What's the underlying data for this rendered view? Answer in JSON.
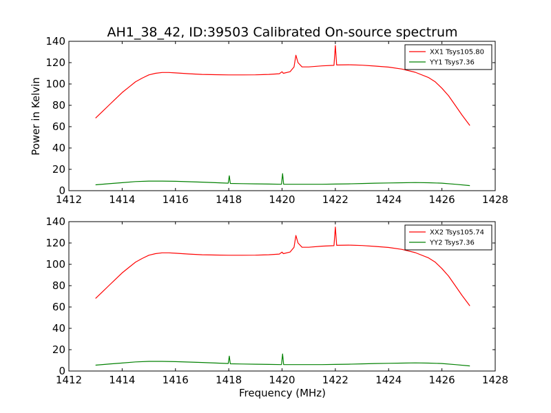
{
  "figure": {
    "title": "AH1_38_42, ID:39503 Calibrated On-source spectrum",
    "ylabel": "Power in Kelvin",
    "xlabel": "Frequency (MHz)"
  },
  "chart_data": [
    {
      "type": "line",
      "xlim": [
        1412,
        1428
      ],
      "ylim": [
        0,
        140
      ],
      "xticks": [
        "1412",
        "1414",
        "1416",
        "1418",
        "1420",
        "1422",
        "1424",
        "1426",
        "1428"
      ],
      "yticks": [
        "0",
        "20",
        "40",
        "60",
        "80",
        "100",
        "120",
        "140"
      ],
      "legend_position": "top-right",
      "series": [
        {
          "name": "XX1 Tsys105.80",
          "color": "#ff0000",
          "points": [
            [
              1413.0,
              68
            ],
            [
              1413.25,
              74
            ],
            [
              1413.5,
              80
            ],
            [
              1413.75,
              86
            ],
            [
              1414.0,
              92
            ],
            [
              1414.25,
              97
            ],
            [
              1414.5,
              102
            ],
            [
              1414.75,
              105.5
            ],
            [
              1415.0,
              108.5
            ],
            [
              1415.25,
              110
            ],
            [
              1415.5,
              110.8
            ],
            [
              1415.75,
              110.8
            ],
            [
              1416.0,
              110.4
            ],
            [
              1416.5,
              109.6
            ],
            [
              1417.0,
              109
            ],
            [
              1417.5,
              108.7
            ],
            [
              1418.0,
              108.5
            ],
            [
              1418.5,
              108.5
            ],
            [
              1419.0,
              108.6
            ],
            [
              1419.5,
              109
            ],
            [
              1419.9,
              109.6
            ],
            [
              1420.0,
              111.5
            ],
            [
              1420.05,
              110
            ],
            [
              1420.3,
              111.5
            ],
            [
              1420.45,
              116
            ],
            [
              1420.52,
              127
            ],
            [
              1420.6,
              120
            ],
            [
              1420.75,
              116
            ],
            [
              1421.0,
              116
            ],
            [
              1421.5,
              117
            ],
            [
              1421.95,
              117.5
            ],
            [
              1422.0,
              136
            ],
            [
              1422.05,
              117.8
            ],
            [
              1422.5,
              118
            ],
            [
              1423.0,
              117.6
            ],
            [
              1423.5,
              116.8
            ],
            [
              1424.0,
              115.8
            ],
            [
              1424.5,
              114
            ],
            [
              1425.0,
              111
            ],
            [
              1425.5,
              106
            ],
            [
              1425.75,
              102
            ],
            [
              1426.0,
              96
            ],
            [
              1426.25,
              89
            ],
            [
              1426.5,
              80
            ],
            [
              1426.75,
              71
            ],
            [
              1427.05,
              61
            ]
          ]
        },
        {
          "name": "YY1 Tsys7.36",
          "color": "#008000",
          "points": [
            [
              1413.0,
              5.5
            ],
            [
              1413.5,
              6.5
            ],
            [
              1414.0,
              7.5
            ],
            [
              1414.5,
              8.5
            ],
            [
              1415.0,
              9
            ],
            [
              1415.5,
              9
            ],
            [
              1416.0,
              8.8
            ],
            [
              1416.5,
              8.4
            ],
            [
              1417.0,
              8
            ],
            [
              1417.5,
              7.5
            ],
            [
              1417.98,
              7
            ],
            [
              1418.02,
              14
            ],
            [
              1418.06,
              6.8
            ],
            [
              1418.5,
              6.6
            ],
            [
              1419.0,
              6.4
            ],
            [
              1419.5,
              6.2
            ],
            [
              1419.98,
              6
            ],
            [
              1420.02,
              16
            ],
            [
              1420.06,
              6
            ],
            [
              1420.5,
              6
            ],
            [
              1421.0,
              6
            ],
            [
              1421.5,
              6
            ],
            [
              1422.0,
              6.2
            ],
            [
              1422.5,
              6.4
            ],
            [
              1423.0,
              6.7
            ],
            [
              1423.5,
              7
            ],
            [
              1424.0,
              7.2
            ],
            [
              1424.5,
              7.4
            ],
            [
              1425.0,
              7.6
            ],
            [
              1425.5,
              7.4
            ],
            [
              1426.0,
              7
            ],
            [
              1426.5,
              6
            ],
            [
              1427.05,
              4.8
            ]
          ]
        }
      ]
    },
    {
      "type": "line",
      "xlim": [
        1412,
        1428
      ],
      "ylim": [
        0,
        140
      ],
      "xticks": [
        "1412",
        "1414",
        "1416",
        "1418",
        "1420",
        "1422",
        "1424",
        "1426",
        "1428"
      ],
      "yticks": [
        "0",
        "20",
        "40",
        "60",
        "80",
        "100",
        "120",
        "140"
      ],
      "legend_position": "top-right",
      "series": [
        {
          "name": "XX2 Tsys105.74",
          "color": "#ff0000",
          "points": [
            [
              1413.0,
              68
            ],
            [
              1413.25,
              74
            ],
            [
              1413.5,
              80
            ],
            [
              1413.75,
              86
            ],
            [
              1414.0,
              92
            ],
            [
              1414.25,
              97
            ],
            [
              1414.5,
              102
            ],
            [
              1414.75,
              105.5
            ],
            [
              1415.0,
              108.5
            ],
            [
              1415.25,
              110
            ],
            [
              1415.5,
              110.8
            ],
            [
              1415.75,
              110.8
            ],
            [
              1416.0,
              110.4
            ],
            [
              1416.5,
              109.6
            ],
            [
              1417.0,
              109
            ],
            [
              1417.5,
              108.7
            ],
            [
              1418.0,
              108.5
            ],
            [
              1418.5,
              108.5
            ],
            [
              1419.0,
              108.6
            ],
            [
              1419.5,
              109
            ],
            [
              1419.9,
              109.6
            ],
            [
              1420.0,
              111.5
            ],
            [
              1420.05,
              110
            ],
            [
              1420.3,
              111.5
            ],
            [
              1420.45,
              116
            ],
            [
              1420.52,
              127
            ],
            [
              1420.6,
              120
            ],
            [
              1420.75,
              116
            ],
            [
              1421.0,
              116
            ],
            [
              1421.5,
              117
            ],
            [
              1421.95,
              117.5
            ],
            [
              1422.0,
              135
            ],
            [
              1422.05,
              117.8
            ],
            [
              1422.5,
              118
            ],
            [
              1423.0,
              117.6
            ],
            [
              1423.5,
              116.8
            ],
            [
              1424.0,
              115.8
            ],
            [
              1424.5,
              114
            ],
            [
              1425.0,
              111
            ],
            [
              1425.5,
              106
            ],
            [
              1425.75,
              102
            ],
            [
              1426.0,
              96
            ],
            [
              1426.25,
              89
            ],
            [
              1426.5,
              80
            ],
            [
              1426.75,
              71
            ],
            [
              1427.05,
              61
            ]
          ]
        },
        {
          "name": "YY2 Tsys7.36",
          "color": "#008000",
          "points": [
            [
              1413.0,
              5.5
            ],
            [
              1413.5,
              6.5
            ],
            [
              1414.0,
              7.5
            ],
            [
              1414.5,
              8.5
            ],
            [
              1415.0,
              9
            ],
            [
              1415.5,
              9
            ],
            [
              1416.0,
              8.8
            ],
            [
              1416.5,
              8.4
            ],
            [
              1417.0,
              8
            ],
            [
              1417.5,
              7.5
            ],
            [
              1417.98,
              7
            ],
            [
              1418.02,
              14
            ],
            [
              1418.06,
              6.8
            ],
            [
              1418.5,
              6.6
            ],
            [
              1419.0,
              6.4
            ],
            [
              1419.5,
              6.2
            ],
            [
              1419.98,
              6
            ],
            [
              1420.02,
              16
            ],
            [
              1420.06,
              6
            ],
            [
              1420.5,
              6
            ],
            [
              1421.0,
              6
            ],
            [
              1421.5,
              6
            ],
            [
              1422.0,
              6.2
            ],
            [
              1422.5,
              6.4
            ],
            [
              1423.0,
              6.7
            ],
            [
              1423.5,
              7
            ],
            [
              1424.0,
              7.2
            ],
            [
              1424.5,
              7.4
            ],
            [
              1425.0,
              7.6
            ],
            [
              1425.5,
              7.4
            ],
            [
              1426.0,
              7
            ],
            [
              1426.5,
              6
            ],
            [
              1427.05,
              4.8
            ]
          ]
        }
      ]
    }
  ]
}
